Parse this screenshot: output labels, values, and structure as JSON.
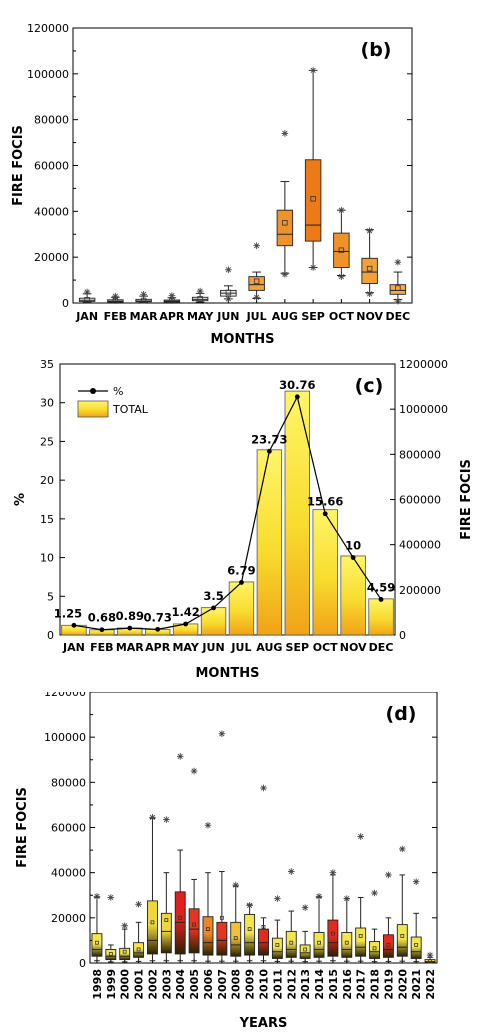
{
  "chart_data": [
    {
      "panel": "(b)",
      "type": "box",
      "xlabel": "MONTHS",
      "ylabel": "FIRE FOCIS",
      "ylim": [
        0,
        120000
      ],
      "yticks": [
        "0",
        "20000",
        "40000",
        "60000",
        "80000",
        "100000",
        "120000"
      ],
      "categories": [
        "JAN",
        "FEB",
        "MAR",
        "APR",
        "MAY",
        "JUN",
        "JUL",
        "AUG",
        "SEP",
        "OCT",
        "NOV",
        "DEC"
      ],
      "boxes": [
        {
          "min": 300,
          "q1": 700,
          "median": 1200,
          "q3": 2100,
          "max": 4000,
          "mean": 1400,
          "outliers": [
            4800
          ]
        },
        {
          "min": 200,
          "q1": 450,
          "median": 800,
          "q3": 1400,
          "max": 2500,
          "mean": 900,
          "outliers": [
            3000
          ]
        },
        {
          "min": 250,
          "q1": 550,
          "median": 900,
          "q3": 1600,
          "max": 3000,
          "mean": 1100,
          "outliers": [
            3800
          ]
        },
        {
          "min": 200,
          "q1": 450,
          "median": 800,
          "q3": 1300,
          "max": 2300,
          "mean": 900,
          "outliers": [
            3200
          ]
        },
        {
          "min": 400,
          "q1": 1000,
          "median": 1600,
          "q3": 2500,
          "max": 4200,
          "mean": 1800,
          "outliers": [
            5200
          ]
        },
        {
          "min": 1800,
          "q1": 3000,
          "median": 4300,
          "q3": 5500,
          "max": 7500,
          "mean": 4600,
          "outliers": [
            14500,
            1800
          ]
        },
        {
          "min": 2000,
          "q1": 5500,
          "median": 8000,
          "q3": 11500,
          "max": 13500,
          "mean": 9500,
          "outliers": [
            25000,
            2500
          ]
        },
        {
          "min": 13000,
          "q1": 25000,
          "median": 30000,
          "q3": 40500,
          "max": 53000,
          "mean": 35000,
          "outliers": [
            74000,
            12500
          ]
        },
        {
          "min": 15500,
          "q1": 27000,
          "median": 34000,
          "q3": 62500,
          "max": 101500,
          "mean": 45500,
          "outliers": [
            101500,
            15500
          ]
        },
        {
          "min": 12000,
          "q1": 15500,
          "median": 22500,
          "q3": 30500,
          "max": 40500,
          "mean": 23000,
          "outliers": [
            40500,
            11500
          ]
        },
        {
          "min": 4500,
          "q1": 8500,
          "median": 13500,
          "q3": 19500,
          "max": 32000,
          "mean": 15000,
          "outliers": [
            31500,
            4000
          ]
        },
        {
          "min": 1500,
          "q1": 3800,
          "median": 5500,
          "q3": 8000,
          "max": 13500,
          "mean": 6500,
          "outliers": [
            17800,
            800
          ]
        }
      ],
      "box_colors": [
        "#ececec",
        "#ececec",
        "#ececec",
        "#ececec",
        "#ececec",
        "#ececec",
        "#f2a03a",
        "#f0922a",
        "#ec7a16",
        "#f0922a",
        "#f2a03a",
        "#f5aa45"
      ]
    },
    {
      "panel": "(c)",
      "type": "bar+line",
      "xlabel": "MONTHS",
      "ylabel": "%",
      "ylabel_right": "FIRE FOCIS",
      "ylim": [
        0,
        35
      ],
      "ylim_right": [
        0,
        1200000
      ],
      "yticks": [
        "0",
        "5",
        "10",
        "15",
        "20",
        "25",
        "30",
        "35"
      ],
      "yticks_right": [
        "0",
        "200000",
        "400000",
        "600000",
        "800000",
        "1000000",
        "1200000"
      ],
      "categories": [
        "JAN",
        "FEB",
        "MAR",
        "APR",
        "MAY",
        "JUN",
        "JUL",
        "AUG",
        "SEP",
        "OCT",
        "NOV",
        "DEC"
      ],
      "percent": [
        1.25,
        0.68,
        0.89,
        0.73,
        1.42,
        3.5,
        6.79,
        23.73,
        30.76,
        15.66,
        10,
        4.59
      ],
      "percent_labels": [
        "1.25",
        "0.68",
        "0.89",
        "0.73",
        "1.42",
        "3.5",
        "6.79",
        "23.73",
        "30.76",
        "15.66",
        "10",
        "4.59"
      ],
      "totals": [
        43000,
        23000,
        31000,
        25000,
        49000,
        121000,
        235000,
        820000,
        1080000,
        555000,
        350000,
        160000
      ],
      "legend": [
        {
          "name": "%",
          "marker": "line-dot"
        },
        {
          "name": "TOTAL",
          "marker": "bar"
        }
      ]
    },
    {
      "panel": "(d)",
      "type": "box",
      "xlabel": "YEARS",
      "ylabel": "FIRE FOCIS",
      "ylim": [
        0,
        120000
      ],
      "yticks": [
        "0",
        "20000",
        "40000",
        "60000",
        "80000",
        "100000",
        "120000"
      ],
      "categories": [
        "1998",
        "1999",
        "2000",
        "2001",
        "2002",
        "2003",
        "2004",
        "2005",
        "2006",
        "2007",
        "2008",
        "2009",
        "2010",
        "2011",
        "2012",
        "2013",
        "2014",
        "2015",
        "2016",
        "2017",
        "2018",
        "2019",
        "2020",
        "2021",
        "2022"
      ],
      "boxes": [
        {
          "min": 1000,
          "q1": 3000,
          "median": 6000,
          "q3": 13000,
          "max": 29000,
          "mean": 9000,
          "outliers": [
            29500
          ]
        },
        {
          "min": 500,
          "q1": 1500,
          "median": 3000,
          "q3": 6000,
          "max": 8000,
          "mean": 4000,
          "outliers": [
            29000
          ]
        },
        {
          "min": 500,
          "q1": 1500,
          "median": 3000,
          "q3": 6500,
          "max": 15000,
          "mean": 5000,
          "outliers": [
            16500
          ]
        },
        {
          "min": 700,
          "q1": 2500,
          "median": 4500,
          "q3": 9000,
          "max": 18000,
          "mean": 6000,
          "outliers": [
            26000
          ]
        },
        {
          "min": 1000,
          "q1": 4000,
          "median": 10000,
          "q3": 27500,
          "max": 64000,
          "mean": 18000,
          "outliers": [
            64500
          ]
        },
        {
          "min": 1000,
          "q1": 4500,
          "median": 14000,
          "q3": 22000,
          "max": 40000,
          "mean": 19000,
          "outliers": [
            63500
          ]
        },
        {
          "min": 1000,
          "q1": 4000,
          "median": 18000,
          "q3": 31500,
          "max": 50000,
          "mean": 20000,
          "outliers": [
            91500
          ]
        },
        {
          "min": 1000,
          "q1": 4500,
          "median": 15000,
          "q3": 24000,
          "max": 37000,
          "mean": 17000,
          "outliers": [
            85000
          ]
        },
        {
          "min": 800,
          "q1": 3500,
          "median": 9000,
          "q3": 20500,
          "max": 40000,
          "mean": 15000,
          "outliers": [
            61000
          ]
        },
        {
          "min": 800,
          "q1": 3500,
          "median": 10000,
          "q3": 18000,
          "max": 40500,
          "mean": 20000,
          "outliers": [
            101500
          ]
        },
        {
          "min": 800,
          "q1": 3000,
          "median": 8000,
          "q3": 18000,
          "max": 34000,
          "mean": 11000,
          "outliers": [
            34500
          ]
        },
        {
          "min": 1000,
          "q1": 3500,
          "median": 9000,
          "q3": 21500,
          "max": 26000,
          "mean": 15000,
          "outliers": [
            25500
          ]
        },
        {
          "min": 1000,
          "q1": 3500,
          "median": 9000,
          "q3": 15000,
          "max": 20000,
          "mean": 16000,
          "outliers": [
            77500
          ]
        },
        {
          "min": 700,
          "q1": 2000,
          "median": 5000,
          "q3": 11000,
          "max": 19000,
          "mean": 8000,
          "outliers": [
            28500
          ]
        },
        {
          "min": 800,
          "q1": 2500,
          "median": 6000,
          "q3": 14000,
          "max": 23000,
          "mean": 9000,
          "outliers": [
            40500
          ]
        },
        {
          "min": 600,
          "q1": 2000,
          "median": 4500,
          "q3": 8000,
          "max": 14000,
          "mean": 6000,
          "outliers": [
            24500
          ]
        },
        {
          "min": 800,
          "q1": 2500,
          "median": 6000,
          "q3": 13500,
          "max": 29000,
          "mean": 9000,
          "outliers": [
            29500
          ]
        },
        {
          "min": 1000,
          "q1": 3000,
          "median": 9000,
          "q3": 19000,
          "max": 39000,
          "mean": 13000,
          "outliers": [
            40000
          ]
        },
        {
          "min": 800,
          "q1": 2500,
          "median": 6000,
          "q3": 13500,
          "max": 28500,
          "mean": 9000,
          "outliers": [
            28500
          ]
        },
        {
          "min": 800,
          "q1": 3000,
          "median": 7000,
          "q3": 15500,
          "max": 29000,
          "mean": 12000,
          "outliers": [
            56000
          ]
        },
        {
          "min": 600,
          "q1": 2000,
          "median": 5000,
          "q3": 9500,
          "max": 15000,
          "mean": 6500,
          "outliers": [
            31000
          ]
        },
        {
          "min": 700,
          "q1": 2500,
          "median": 6000,
          "q3": 12500,
          "max": 20000,
          "mean": 8000,
          "outliers": [
            39000
          ]
        },
        {
          "min": 800,
          "q1": 3000,
          "median": 7000,
          "q3": 17000,
          "max": 39000,
          "mean": 12000,
          "outliers": [
            50500
          ]
        },
        {
          "min": 600,
          "q1": 2000,
          "median": 5000,
          "q3": 11500,
          "max": 22000,
          "mean": 8000,
          "outliers": [
            36000
          ]
        },
        {
          "min": 100,
          "q1": 300,
          "median": 600,
          "q3": 1500,
          "max": 2500,
          "mean": 800,
          "outliers": [
            3500
          ]
        }
      ],
      "box_colors": [
        "#f3e64a",
        "#f3e64a",
        "#f3e64a",
        "#f3e64a",
        "#f0d63c",
        "#f0d63c",
        "#e0201b",
        "#e43522",
        "#ee8428",
        "#e43522",
        "#f0c238",
        "#f3e64a",
        "#e22a1e",
        "#f3e64a",
        "#f3e64a",
        "#f3e64a",
        "#f3e64a",
        "#e22a1e",
        "#f3e64a",
        "#f3e64a",
        "#f3e64a",
        "#e22a1e",
        "#f3e64a",
        "#f3e64a",
        "#f3e64a"
      ]
    }
  ]
}
